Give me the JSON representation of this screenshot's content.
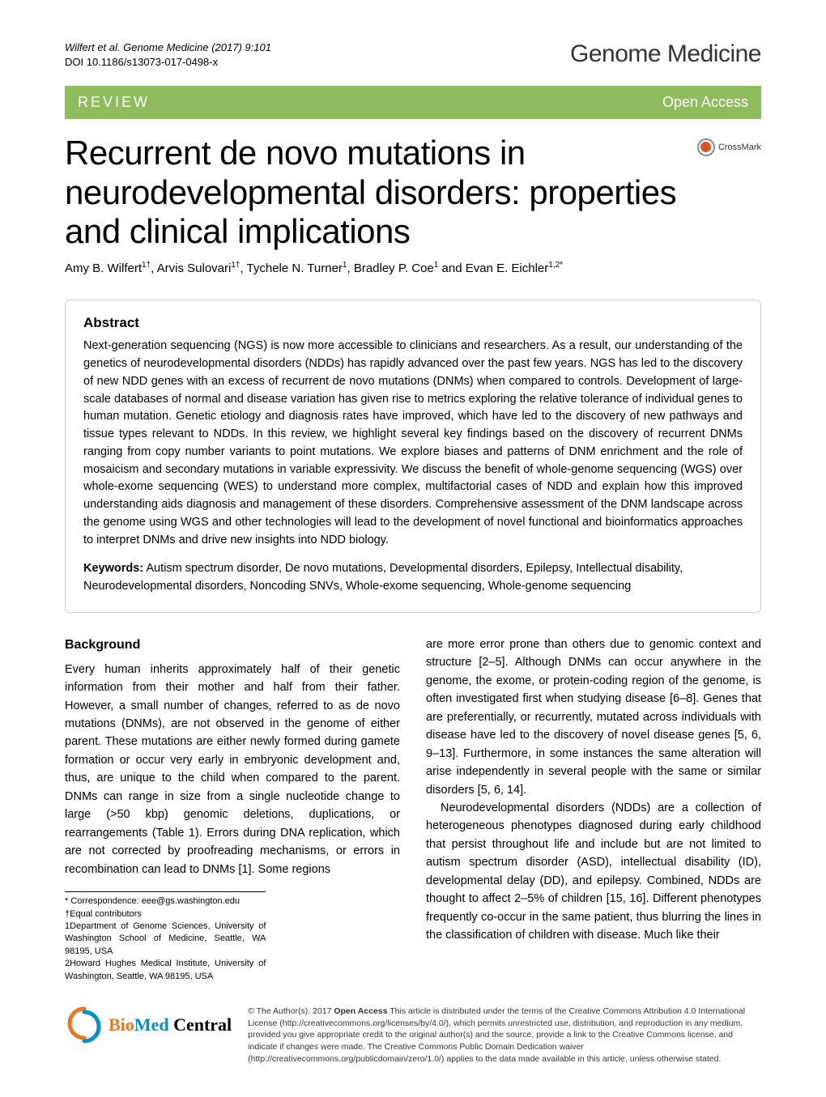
{
  "header": {
    "citation_line1": "Wilfert et al. Genome Medicine  (2017) 9:101",
    "citation_line2": "DOI 10.1186/s13073-017-0498-x",
    "journal_name": "Genome Medicine"
  },
  "banner": {
    "section": "REVIEW",
    "access": "Open Access",
    "bg_color": "#8fbc5e"
  },
  "crossmark": {
    "label": "CrossMark"
  },
  "article": {
    "title": "Recurrent de novo mutations in neurodevelopmental disorders: properties and clinical implications",
    "authors_html": "Amy B. Wilfert<sup>1†</sup>, Arvis Sulovari<sup>1†</sup>, Tychele N. Turner<sup>1</sup>, Bradley P. Coe<sup>1</sup> and Evan E. Eichler<sup>1,2*</sup>"
  },
  "abstract": {
    "heading": "Abstract",
    "text": "Next-generation sequencing (NGS) is now more accessible to clinicians and researchers. As a result, our understanding of the genetics of neurodevelopmental disorders (NDDs) has rapidly advanced over the past few years. NGS has led to the discovery of new NDD genes with an excess of recurrent de novo mutations (DNMs) when compared to controls. Development of large-scale databases of normal and disease variation has given rise to metrics exploring the relative tolerance of individual genes to human mutation. Genetic etiology and diagnosis rates have improved, which have led to the discovery of new pathways and tissue types relevant to NDDs. In this review, we highlight several key findings based on the discovery of recurrent DNMs ranging from copy number variants to point mutations. We explore biases and patterns of DNM enrichment and the role of mosaicism and secondary mutations in variable expressivity. We discuss the benefit of whole-genome sequencing (WGS) over whole-exome sequencing (WES) to understand more complex, multifactorial cases of NDD and explain how this improved understanding aids diagnosis and management of these disorders. Comprehensive assessment of the DNM landscape across the genome using WGS and other technologies will lead to the development of novel functional and bioinformatics approaches to interpret DNMs and drive new insights into NDD biology.",
    "keywords_label": "Keywords:",
    "keywords_text": " Autism spectrum disorder, De novo mutations, Developmental disorders, Epilepsy, Intellectual disability, Neurodevelopmental disorders, Noncoding SNVs, Whole-exome sequencing, Whole-genome sequencing"
  },
  "body": {
    "background_heading": "Background",
    "col1_p1": "Every human inherits approximately half of their genetic information from their mother and half from their father. However, a small number of changes, referred to as de novo mutations (DNMs), are not observed in the genome of either parent. These mutations are either newly formed during gamete formation or occur very early in embryonic development and, thus, are unique to the child when compared to the parent. DNMs can range in size from a single nucleotide change to large (>50 kbp) genomic deletions, duplications, or rearrangements (Table 1). Errors during DNA replication, which are not corrected by proofreading mechanisms, or errors in recombination can lead to DNMs [1]. Some regions",
    "col2_p1": "are more error prone than others due to genomic context and structure [2–5]. Although DNMs can occur anywhere in the genome, the exome, or protein-coding region of the genome, is often investigated first when studying disease [6–8]. Genes that are preferentially, or recurrently, mutated across individuals with disease have led to the discovery of novel disease genes [5, 6, 9–13]. Furthermore, in some instances the same alteration will arise independently in several people with the same or similar disorders [5, 6, 14].",
    "col2_p2": "Neurodevelopmental disorders (NDDs) are a collection of heterogeneous phenotypes diagnosed during early childhood that persist throughout life and include but are not limited to autism spectrum disorder (ASD), intellectual disability (ID), developmental delay (DD), and epilepsy. Combined, NDDs are thought to affect 2–5% of children [15, 16]. Different phenotypes frequently co-occur in the same patient, thus blurring the lines in the classification of children with disease. Much like their"
  },
  "footnotes": {
    "correspondence": "* Correspondence: eee@gs.washington.edu",
    "equal": "†Equal contributors",
    "aff1": "1Department of Genome Sciences, University of Washington School of Medicine, Seattle, WA 98195, USA",
    "aff2": "2Howard Hughes Medical Institute, University of Washington, Seattle, WA 98195, USA"
  },
  "footer": {
    "logo_text": "BioMed Central",
    "license_text": "© The Author(s). 2017 Open Access This article is distributed under the terms of the Creative Commons Attribution 4.0 International License (http://creativecommons.org/licenses/by/4.0/), which permits unrestricted use, distribution, and reproduction in any medium, provided you give appropriate credit to the original author(s) and the source, provide a link to the Creative Commons license, and indicate if changes were made. The Creative Commons Public Domain Dedication waiver (http://creativecommons.org/publicdomain/zero/1.0/) applies to the data made available in this article, unless otherwise stated.",
    "open_access_bold": "Open Access"
  },
  "colors": {
    "banner_bg": "#8fbc5e",
    "banner_text": "#ffffff",
    "bmc_orange": "#e87722",
    "bmc_blue": "#0090c8",
    "crossmark_orange": "#d4582a"
  }
}
